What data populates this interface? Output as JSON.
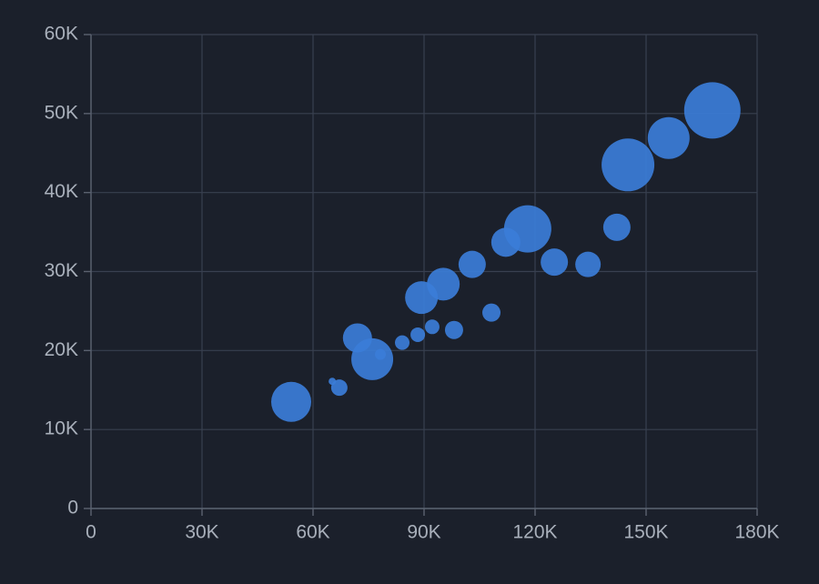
{
  "chart_data": {
    "type": "bubble",
    "x": [
      54100,
      65200,
      67100,
      72000,
      76000,
      78200,
      84100,
      88300,
      89300,
      92200,
      95200,
      98100,
      103000,
      108200,
      112100,
      118000,
      125200,
      134300,
      142100,
      145100,
      156100,
      167900
    ],
    "values": [
      13500,
      16100,
      15300,
      21600,
      18900,
      19500,
      21000,
      22000,
      26700,
      23000,
      28400,
      22600,
      30900,
      24800,
      33700,
      35400,
      31200,
      30900,
      35600,
      43500,
      46900,
      50400
    ],
    "sizes": [
      22,
      4,
      9,
      16,
      23,
      6,
      8,
      8,
      18,
      8,
      18,
      10,
      15,
      10,
      16,
      26,
      15,
      14,
      15,
      29,
      23,
      31
    ],
    "color": "#3b7dd8",
    "xlim": [
      0,
      180000
    ],
    "xticks": [
      0,
      {
        "value": 30000,
        "label": "30K"
      },
      {
        "value": 60000,
        "label": "60K"
      },
      {
        "value": 90000,
        "label": "90K"
      },
      {
        "value": 120000,
        "label": "120K"
      },
      {
        "value": 150000,
        "label": "150K"
      },
      {
        "value": 180000,
        "label": "180K"
      }
    ],
    "ylim": [
      0,
      60000
    ],
    "yticks": [
      0,
      {
        "value": 10000,
        "label": "10K"
      },
      {
        "value": 20000,
        "label": "20K"
      },
      {
        "value": 30000,
        "label": "30K"
      },
      {
        "value": 40000,
        "label": "40K"
      },
      {
        "value": 50000,
        "label": "50K"
      },
      {
        "value": 60000,
        "label": "60K"
      }
    ],
    "grid": true
  }
}
